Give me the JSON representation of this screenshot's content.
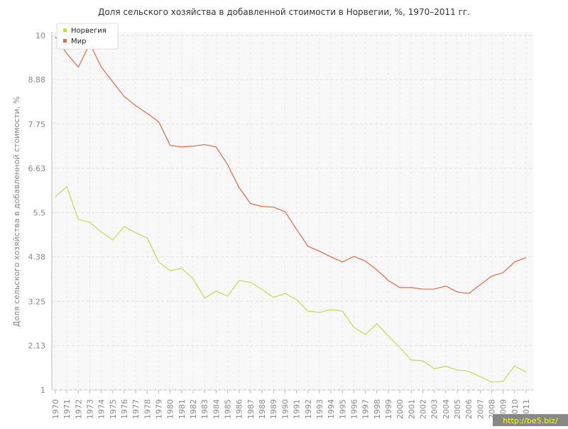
{
  "chart_data": {
    "type": "line",
    "title": "Доля сельского хозяйства в добавленной стоимости в Норвегии, %, 1970–2011 гг.",
    "y_label": "Доля сельского хозяйства в добавленной стоимости, %",
    "categories": [
      "1970",
      "1971",
      "1972",
      "1973",
      "1974",
      "1975",
      "1976",
      "1977",
      "1978",
      "1979",
      "1980",
      "1981",
      "1982",
      "1983",
      "1984",
      "1985",
      "1986",
      "1987",
      "1988",
      "1989",
      "1990",
      "1991",
      "1992",
      "1993",
      "1994",
      "1995",
      "1996",
      "1997",
      "1998",
      "1999",
      "2000",
      "2001",
      "2002",
      "2003",
      "2004",
      "2005",
      "2006",
      "2007",
      "2008",
      "2009",
      "2010",
      "2011"
    ],
    "series": [
      {
        "name": "Норвегия",
        "color": "#c3db4c",
        "values": [
          5.91,
          6.16,
          5.33,
          5.26,
          5.01,
          4.81,
          5.15,
          4.99,
          4.86,
          4.25,
          4.03,
          4.09,
          3.82,
          3.33,
          3.51,
          3.38,
          3.78,
          3.73,
          3.55,
          3.35,
          3.45,
          3.29,
          3.0,
          2.97,
          3.04,
          3.0,
          2.59,
          2.41,
          2.68,
          2.37,
          2.08,
          1.76,
          1.74,
          1.54,
          1.6,
          1.51,
          1.47,
          1.34,
          1.2,
          1.22,
          1.61,
          1.45
        ]
      },
      {
        "name": "Мир",
        "color": "#e8683f",
        "values": [
          9.97,
          9.54,
          9.2,
          9.79,
          9.2,
          8.82,
          8.45,
          8.22,
          8.02,
          7.81,
          7.21,
          7.17,
          7.19,
          7.23,
          7.17,
          6.72,
          6.14,
          5.73,
          5.66,
          5.64,
          5.53,
          5.08,
          4.65,
          4.52,
          4.38,
          4.25,
          4.39,
          4.27,
          4.05,
          3.78,
          3.6,
          3.6,
          3.56,
          3.56,
          3.64,
          3.49,
          3.45,
          3.67,
          3.89,
          3.98,
          4.25,
          4.36
        ]
      }
    ],
    "ylim": [
      1,
      10
    ],
    "yticks": [
      1,
      2.13,
      3.25,
      4.38,
      5.5,
      6.63,
      7.75,
      8.88,
      10
    ],
    "grid": true,
    "legend": "upper left"
  },
  "watermark": "http://be5.biz/"
}
